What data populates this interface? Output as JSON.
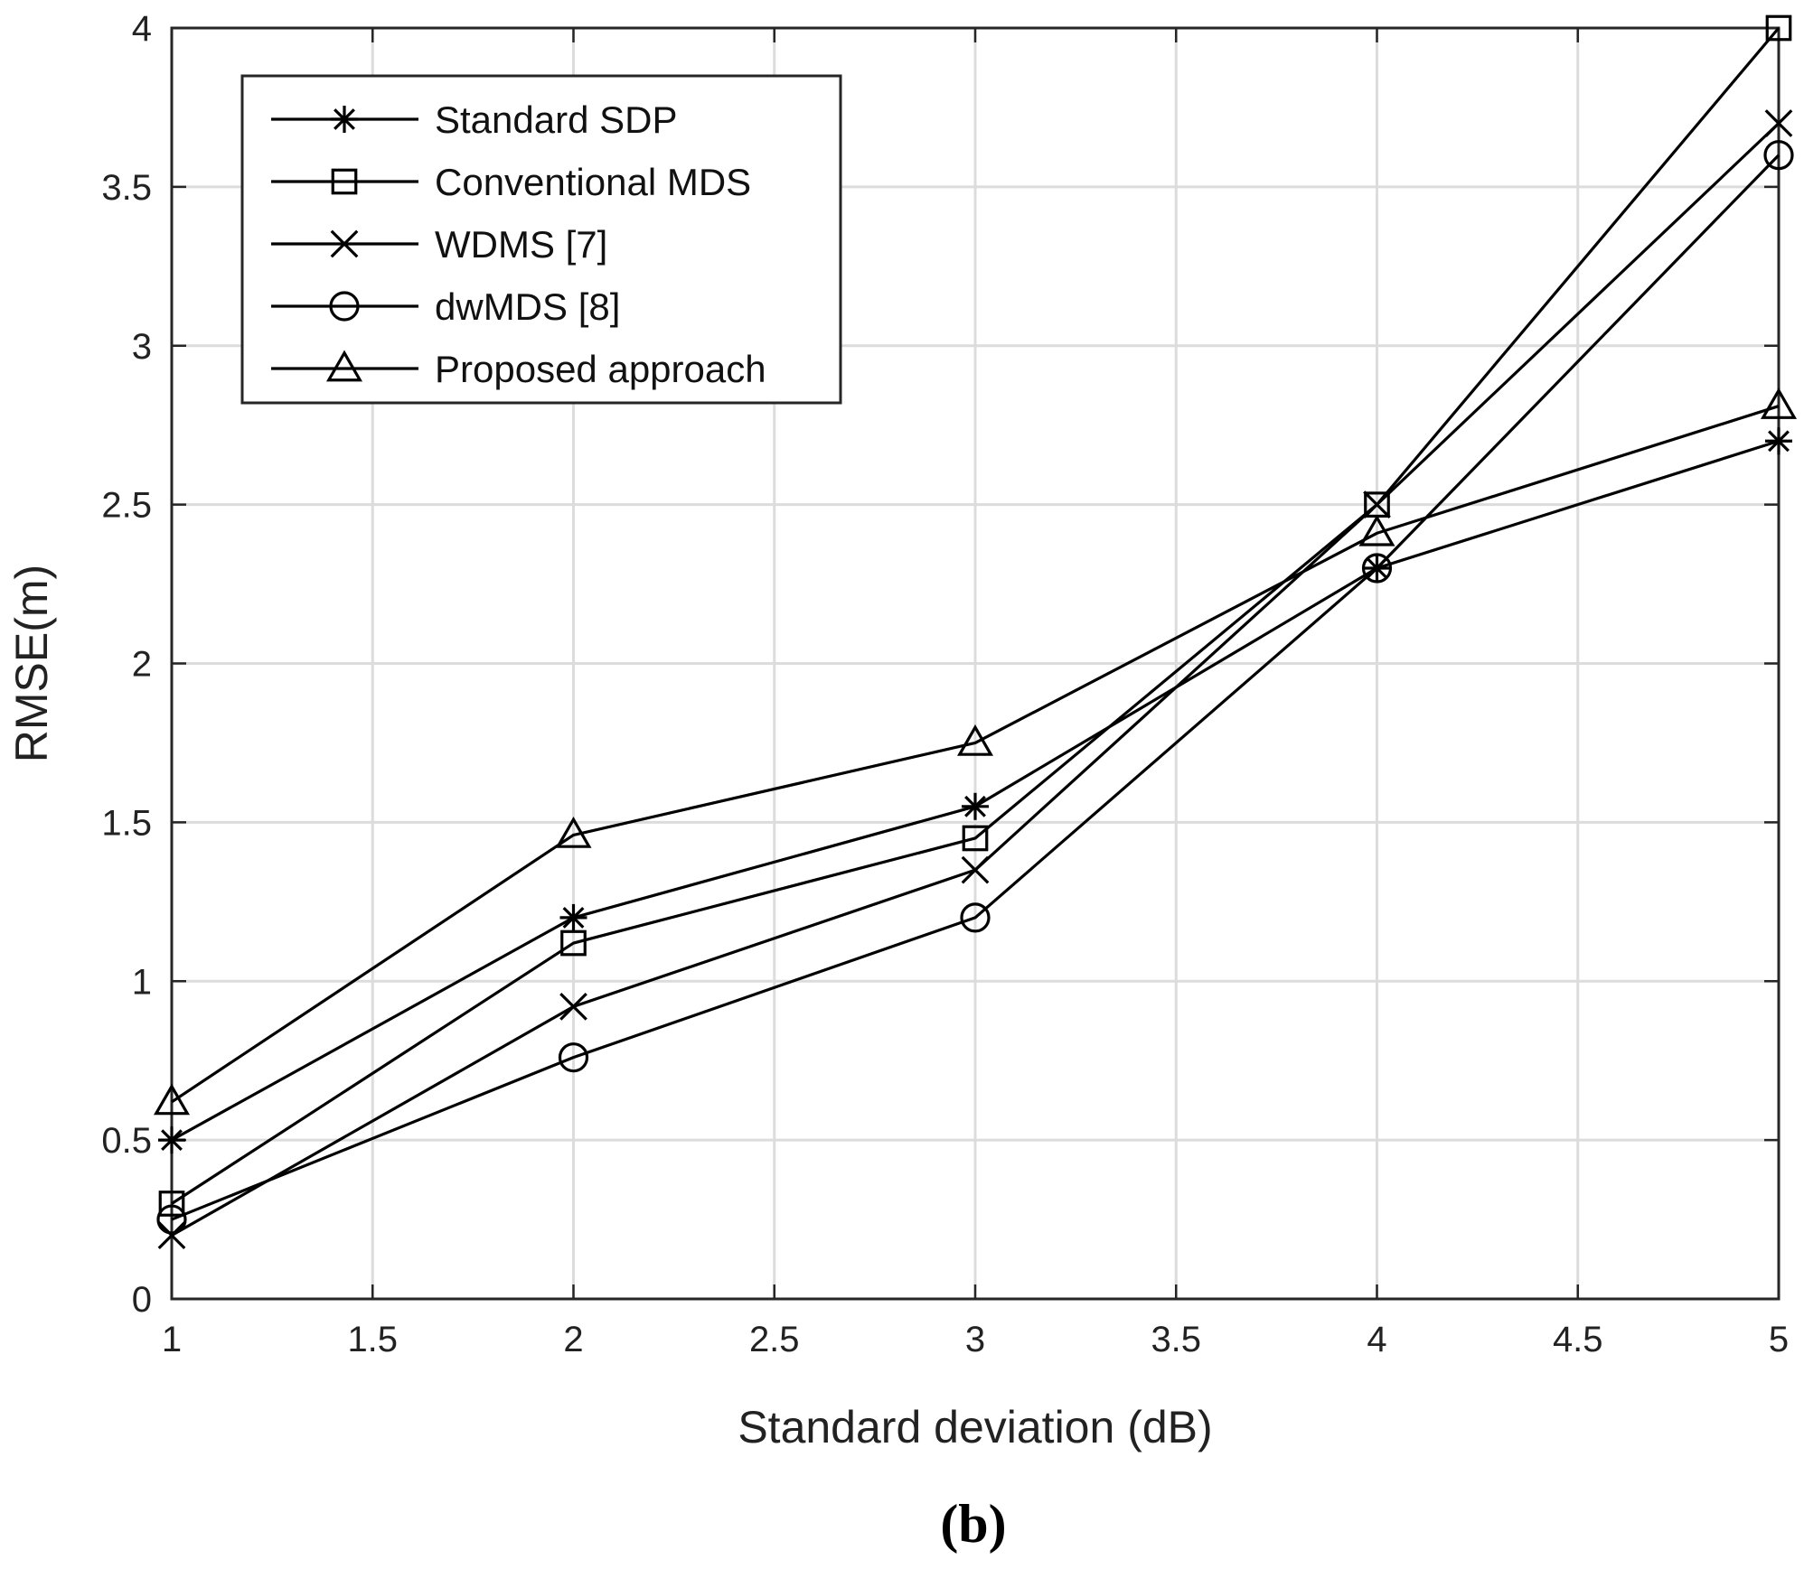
{
  "chart_data": {
    "type": "line",
    "title": "",
    "xlabel": "Standard deviation (dB)",
    "ylabel": "RMSE(m)",
    "xlim": [
      1,
      5
    ],
    "ylim": [
      0,
      4
    ],
    "grid": true,
    "legend_position": "top-left",
    "x": [
      1,
      2,
      3,
      4,
      5
    ],
    "x_tick_labels": [
      "1",
      "1.5",
      "2",
      "2.5",
      "3",
      "3.5",
      "4",
      "4.5",
      "5"
    ],
    "y_tick_labels": [
      "0",
      "0.5",
      "1",
      "1.5",
      "2",
      "2.5",
      "3",
      "3.5",
      "4"
    ],
    "series": [
      {
        "name": "Standard SDP",
        "marker": "asterisk",
        "values": [
          0.5,
          1.2,
          1.55,
          2.3,
          2.7
        ]
      },
      {
        "name": "Conventional MDS",
        "marker": "square",
        "values": [
          0.3,
          1.12,
          1.45,
          2.5,
          4.0
        ]
      },
      {
        "name": "WDMS [7]",
        "marker": "x",
        "values": [
          0.2,
          0.92,
          1.35,
          2.5,
          3.7
        ]
      },
      {
        "name": "dwMDS [8]",
        "marker": "circle",
        "values": [
          0.25,
          0.76,
          1.2,
          2.3,
          3.6
        ]
      },
      {
        "name": "Proposed approach",
        "marker": "triangle",
        "values": [
          0.62,
          1.46,
          1.75,
          2.41,
          2.81
        ]
      }
    ],
    "caption": "(b)",
    "colors": {
      "line": "#000000",
      "grid": "#dcdcdc",
      "frame": "#262626"
    }
  }
}
